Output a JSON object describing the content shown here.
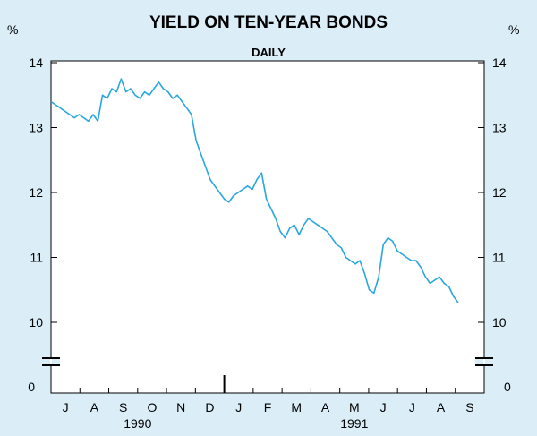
{
  "chart_data": {
    "type": "line",
    "title": "YIELD ON TEN-YEAR BONDS",
    "subtitle": "DAILY",
    "yunit_left": "%",
    "yunit_right": "%",
    "ylim": [
      10,
      14
    ],
    "yticks": [
      14,
      13,
      12,
      11,
      10
    ],
    "y_zero_label": "0",
    "y_axis_break": true,
    "grid": false,
    "legend": "none",
    "month_labels": [
      "J",
      "A",
      "S",
      "O",
      "N",
      "D",
      "J",
      "F",
      "M",
      "A",
      "M",
      "J",
      "J",
      "A",
      "S"
    ],
    "year_labels": [
      "1990",
      "1991"
    ],
    "line_color": "#2aa6df",
    "series": [
      {
        "values": [
          13.4,
          13.35,
          13.3,
          13.25,
          13.2,
          13.15,
          13.2,
          13.15,
          13.1,
          13.2,
          13.1,
          13.5,
          13.45,
          13.6,
          13.55,
          13.75,
          13.55,
          13.6,
          13.5,
          13.45,
          13.55,
          13.5,
          13.6,
          13.7,
          13.6,
          13.55,
          13.45,
          13.5,
          13.4,
          13.3,
          13.2,
          12.8,
          12.6,
          12.4,
          12.2,
          12.1,
          12.0,
          11.9,
          11.85,
          11.95,
          12.0,
          12.05,
          12.1,
          12.05,
          12.2,
          12.3,
          11.9,
          11.75,
          11.6,
          11.4,
          11.3,
          11.45,
          11.5,
          11.35,
          11.5,
          11.6,
          11.55,
          11.5,
          11.45,
          11.4,
          11.3,
          11.2,
          11.15,
          11.0,
          10.95,
          10.9,
          10.95,
          10.75,
          10.5,
          10.45,
          10.7,
          11.2,
          11.3,
          11.25,
          11.1,
          11.05,
          11.0,
          10.95,
          10.95,
          10.85,
          10.7,
          10.6,
          10.65,
          10.7,
          10.6,
          10.55,
          10.4,
          10.3
        ]
      }
    ]
  }
}
